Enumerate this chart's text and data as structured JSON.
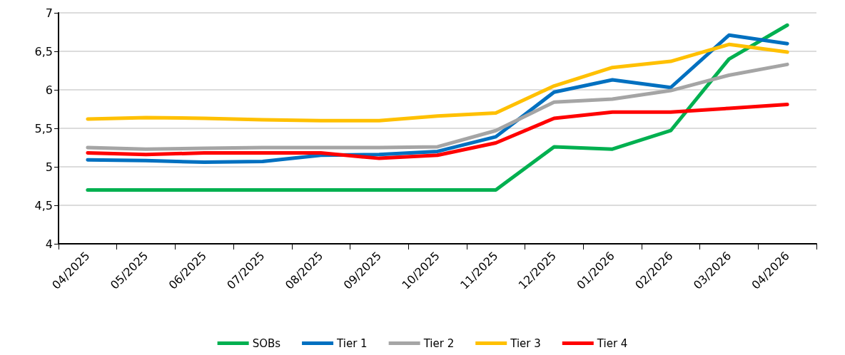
{
  "chart_data": {
    "type": "line",
    "categories": [
      "04/2025",
      "05/2025",
      "06/2025",
      "07/2025",
      "08/2025",
      "09/2025",
      "10/2025",
      "11/2025",
      "12/2025",
      "01/2026",
      "02/2026",
      "03/2026",
      "04/2026"
    ],
    "series": [
      {
        "name": "SOBs",
        "color": "#00b050",
        "values": [
          4.7,
          4.7,
          4.7,
          4.7,
          4.7,
          4.7,
          4.7,
          4.7,
          5.26,
          5.23,
          5.47,
          6.4,
          6.84
        ]
      },
      {
        "name": "Tier 1",
        "color": "#0070c0",
        "values": [
          5.09,
          5.08,
          5.06,
          5.07,
          5.15,
          5.16,
          5.2,
          5.39,
          5.97,
          6.13,
          6.03,
          6.71,
          6.6
        ]
      },
      {
        "name": "Tier 2",
        "color": "#a5a5a5",
        "values": [
          5.25,
          5.23,
          5.24,
          5.25,
          5.25,
          5.25,
          5.26,
          5.47,
          5.84,
          5.88,
          5.99,
          6.19,
          6.33
        ]
      },
      {
        "name": "Tier 3",
        "color": "#ffc000",
        "values": [
          5.62,
          5.64,
          5.63,
          5.61,
          5.6,
          5.6,
          5.66,
          5.7,
          6.05,
          6.29,
          6.37,
          6.59,
          6.49
        ]
      },
      {
        "name": "Tier 4",
        "color": "#ff0000",
        "values": [
          5.18,
          5.16,
          5.18,
          5.18,
          5.18,
          5.11,
          5.15,
          5.31,
          5.63,
          5.71,
          5.71,
          5.76,
          5.81
        ]
      }
    ],
    "ylim": [
      4,
      7
    ],
    "yticks": [
      4,
      {
        "value": 4.5,
        "label": "4,5"
      },
      5,
      {
        "value": 5.5,
        "label": "5,5"
      },
      6,
      {
        "value": 6.5,
        "label": "6,5"
      },
      7
    ],
    "grid": "y",
    "legend": "bottom",
    "marker": "none",
    "line_style": "solid"
  }
}
